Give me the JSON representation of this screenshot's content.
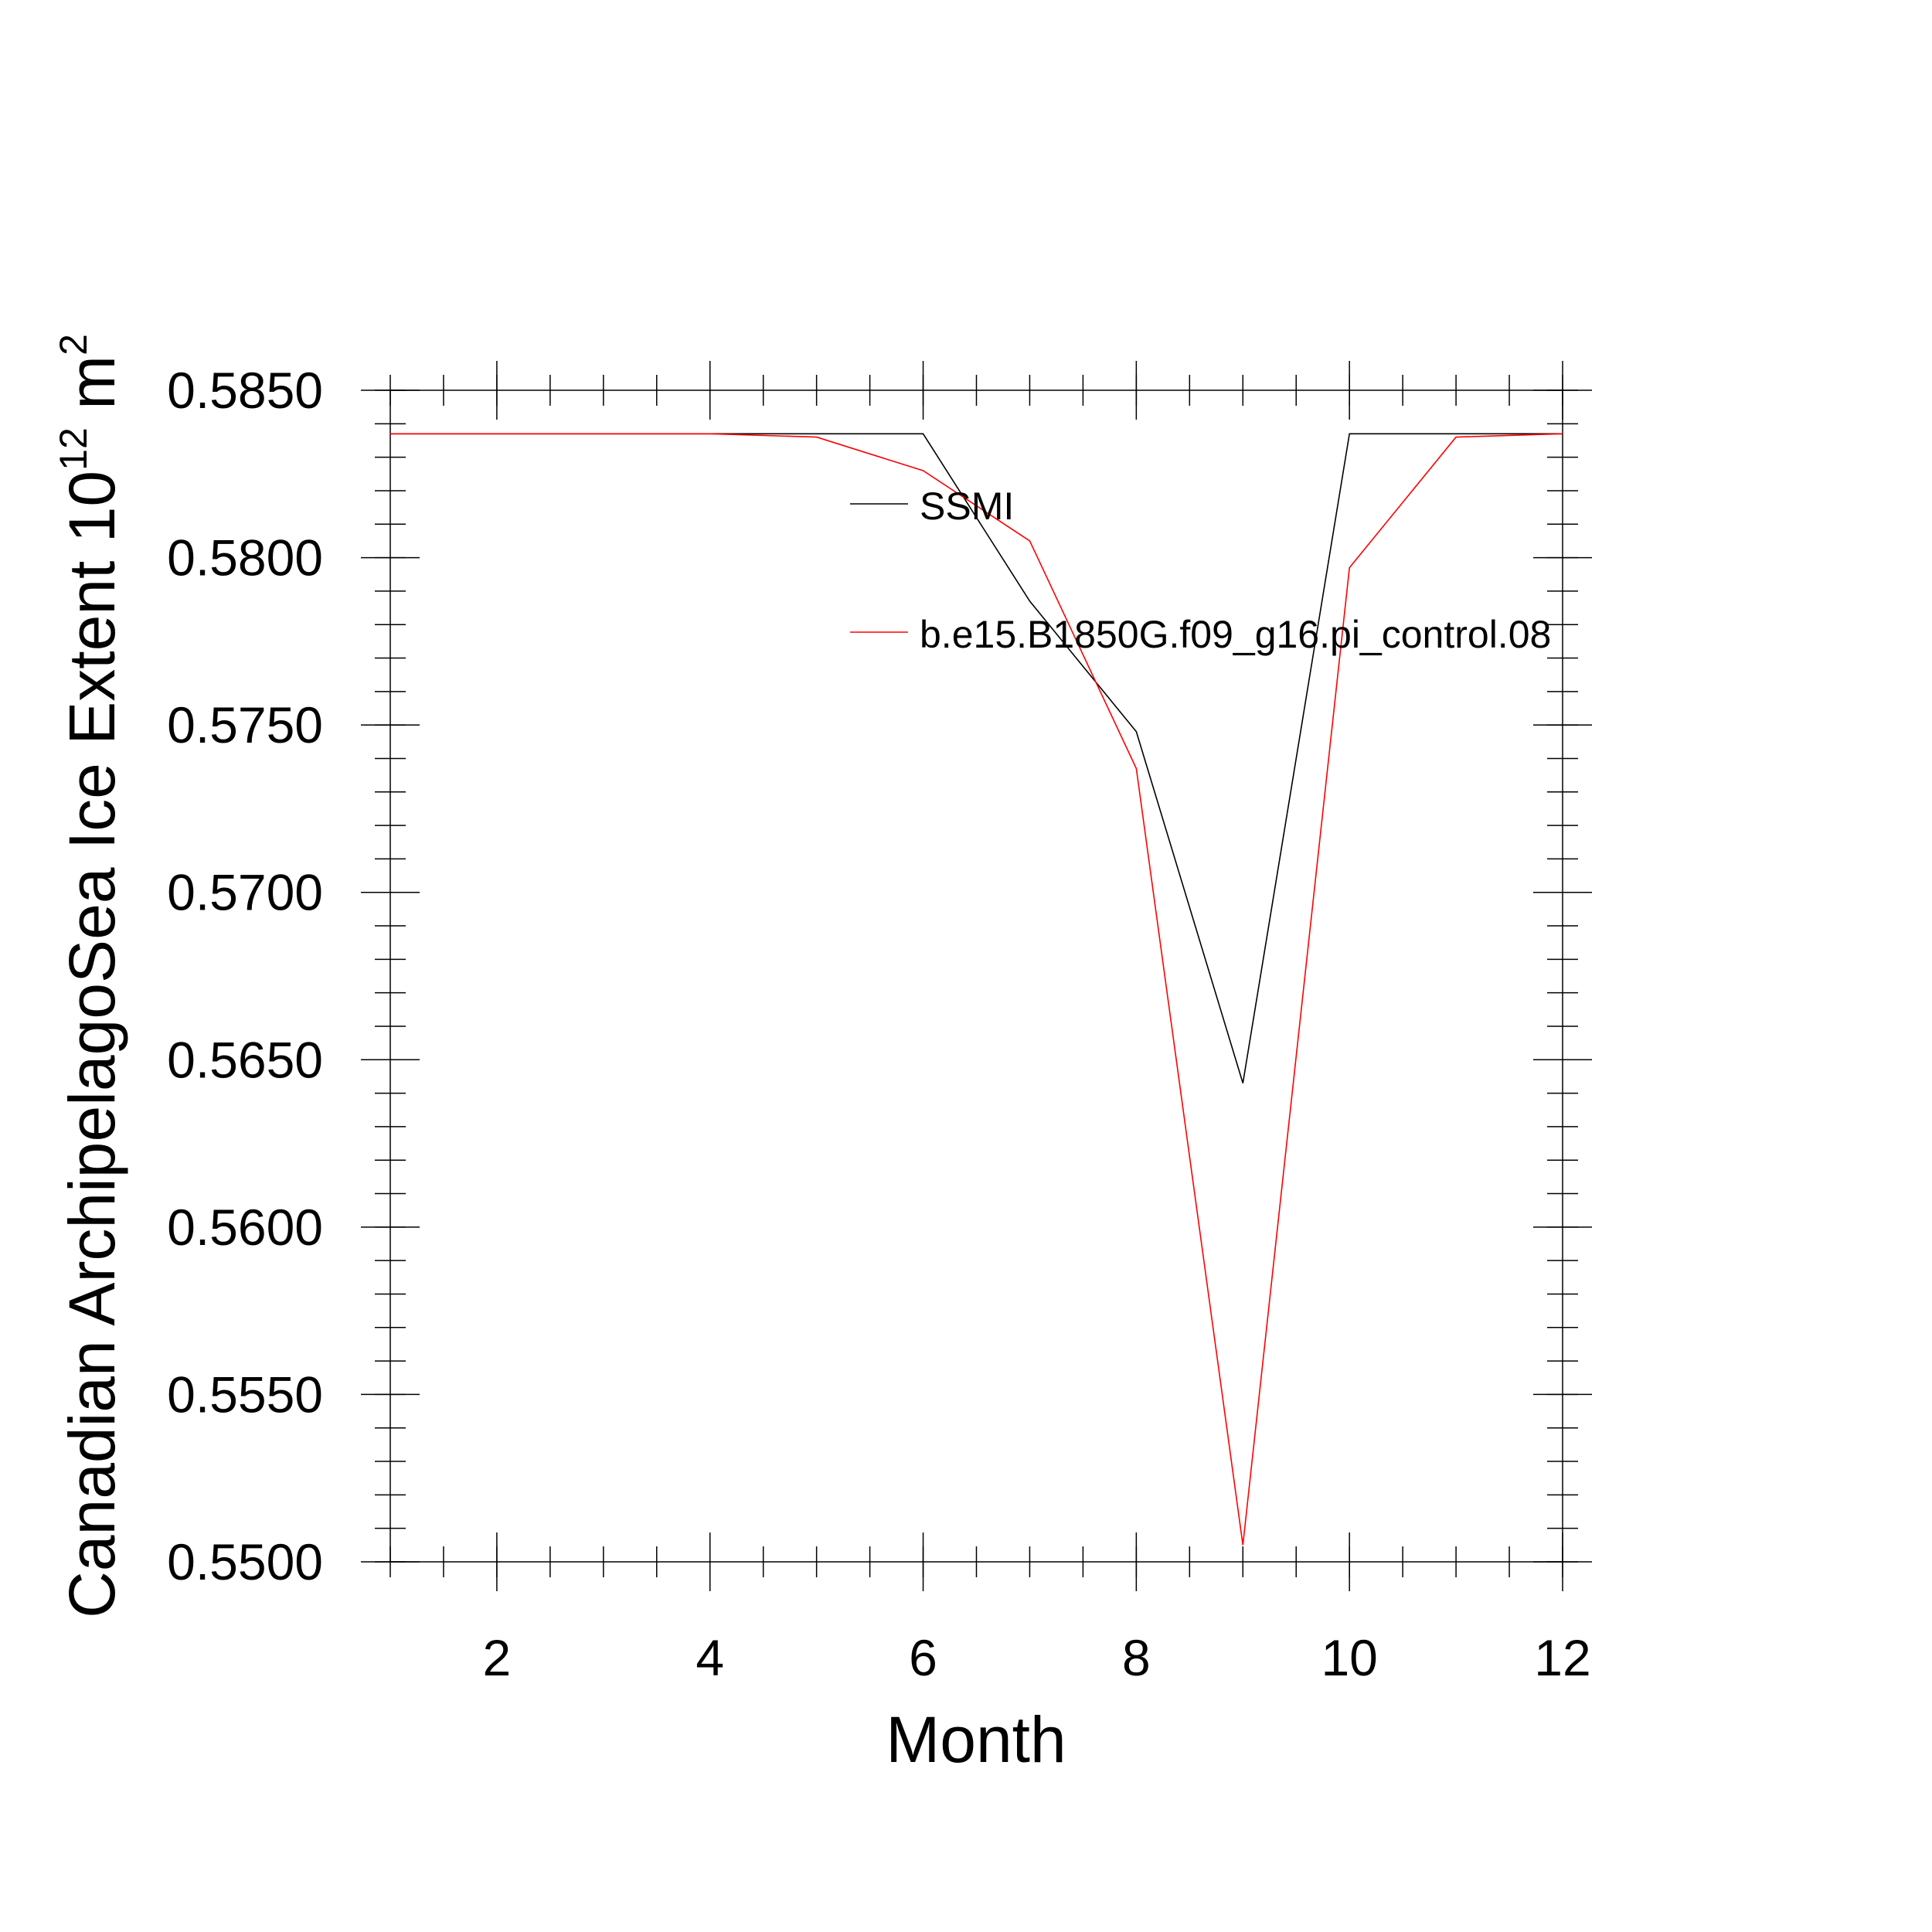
{
  "chart_data": {
    "type": "line",
    "xlabel": "Month",
    "ylabel": {
      "text": "Canadian ArchipelagoSea Ice Extent 10",
      "exp1": "12",
      "unit": " m",
      "exp2": "2"
    },
    "xlim": [
      1,
      12
    ],
    "ylim": [
      0.55,
      0.585
    ],
    "xticks": [
      2,
      4,
      6,
      8,
      10,
      12
    ],
    "yticks": [
      "0.5500",
      "0.5550",
      "0.5600",
      "0.5650",
      "0.5700",
      "0.5750",
      "0.5800",
      "0.5850"
    ],
    "grid": false,
    "legend_position": "top-right inside plot",
    "x": [
      1,
      2,
      3,
      4,
      5,
      6,
      7,
      8,
      9,
      10,
      11,
      12
    ],
    "series": [
      {
        "name": "SSMI",
        "color": "#000000",
        "values": [
          0.5837,
          0.5837,
          0.5837,
          0.5837,
          0.5837,
          0.5837,
          0.5787,
          0.5748,
          0.5643,
          0.5837,
          0.5837,
          0.5837
        ]
      },
      {
        "name": "b.e15.B1850G.f09_g16.pi_control.08",
        "color": "#ff0000",
        "values": [
          0.5837,
          0.5837,
          0.5837,
          0.5837,
          0.5836,
          0.5826,
          0.5805,
          0.5737,
          0.5505,
          0.5797,
          0.5836,
          0.5837
        ]
      }
    ]
  }
}
